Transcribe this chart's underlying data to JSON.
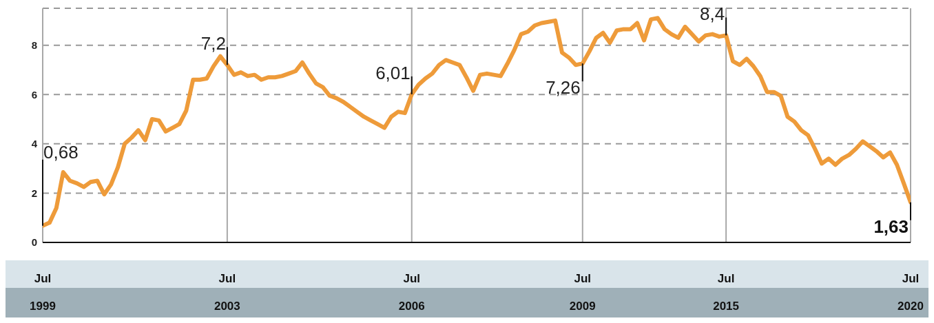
{
  "chart_data": {
    "type": "line",
    "categories": [
      "Jul 1999",
      null,
      null,
      null,
      null,
      null,
      null,
      null,
      null,
      null,
      null,
      null,
      null,
      null,
      null,
      null,
      null,
      null,
      null,
      null,
      null,
      null,
      null,
      null,
      null,
      null,
      null,
      "Jul 2003",
      null,
      null,
      null,
      null,
      null,
      null,
      null,
      null,
      null,
      null,
      null,
      null,
      null,
      null,
      null,
      null,
      null,
      null,
      null,
      null,
      null,
      null,
      null,
      null,
      null,
      null,
      "Jul 2006",
      null,
      null,
      null,
      null,
      null,
      null,
      null,
      null,
      null,
      null,
      null,
      null,
      null,
      null,
      null,
      null,
      null,
      null,
      null,
      null,
      null,
      null,
      null,
      null,
      "Jul 2009",
      null,
      null,
      null,
      null,
      null,
      null,
      null,
      null,
      null,
      null,
      null,
      null,
      null,
      null,
      null,
      null,
      null,
      null,
      null,
      null,
      "Jul 2015",
      null,
      null,
      null,
      null,
      null,
      null,
      null,
      null,
      null,
      null,
      null,
      null,
      null,
      null,
      null,
      null,
      null,
      null,
      null,
      null,
      null,
      null,
      null,
      null,
      null,
      null,
      "Jul 2020"
    ],
    "series": [
      {
        "color": "#ee9b3a",
        "values": [
          0.68,
          0.8,
          1.4,
          2.85,
          2.5,
          2.4,
          2.25,
          2.45,
          2.5,
          1.95,
          2.35,
          3.05,
          4.0,
          4.25,
          4.55,
          4.15,
          5.0,
          4.95,
          4.5,
          4.65,
          4.8,
          5.35,
          6.6,
          6.6,
          6.65,
          7.15,
          7.55,
          7.2,
          6.8,
          6.9,
          6.75,
          6.8,
          6.6,
          6.7,
          6.7,
          6.75,
          6.85,
          6.95,
          7.3,
          6.85,
          6.45,
          6.3,
          5.95,
          5.85,
          5.7,
          5.5,
          5.3,
          5.1,
          4.95,
          4.8,
          4.65,
          5.1,
          5.3,
          5.25,
          6.01,
          6.4,
          6.65,
          6.85,
          7.2,
          7.4,
          7.3,
          7.2,
          6.7,
          6.15,
          6.8,
          6.85,
          6.8,
          6.75,
          7.25,
          7.8,
          8.45,
          8.55,
          8.8,
          8.9,
          8.95,
          9.0,
          7.7,
          7.5,
          7.2,
          7.26,
          7.75,
          8.3,
          8.5,
          8.1,
          8.6,
          8.65,
          8.65,
          8.9,
          8.2,
          9.05,
          9.1,
          8.65,
          8.45,
          8.3,
          8.75,
          8.45,
          8.15,
          8.4,
          8.45,
          8.35,
          8.4,
          7.35,
          7.2,
          7.45,
          7.15,
          6.75,
          6.1,
          6.1,
          5.95,
          5.1,
          4.9,
          4.55,
          4.35,
          3.8,
          3.2,
          3.4,
          3.15,
          3.4,
          3.55,
          3.8,
          4.1,
          3.9,
          3.7,
          3.45,
          3.65,
          3.15,
          2.4,
          1.63
        ],
        "value_labels": [
          "0,68",
          null,
          null,
          null,
          null,
          null,
          null,
          null,
          null,
          null,
          null,
          null,
          null,
          null,
          null,
          null,
          null,
          null,
          null,
          null,
          null,
          null,
          null,
          null,
          null,
          null,
          null,
          "7,2",
          null,
          null,
          null,
          null,
          null,
          null,
          null,
          null,
          null,
          null,
          null,
          null,
          null,
          null,
          null,
          null,
          null,
          null,
          null,
          null,
          null,
          null,
          null,
          null,
          null,
          null,
          "6,01",
          null,
          null,
          null,
          null,
          null,
          null,
          null,
          null,
          null,
          null,
          null,
          null,
          null,
          null,
          null,
          null,
          null,
          null,
          null,
          null,
          null,
          null,
          null,
          null,
          "7,26",
          null,
          null,
          null,
          null,
          null,
          null,
          null,
          null,
          null,
          null,
          null,
          null,
          null,
          null,
          null,
          null,
          null,
          null,
          null,
          null,
          "8,4",
          null,
          null,
          null,
          null,
          null,
          null,
          null,
          null,
          null,
          null,
          null,
          null,
          null,
          null,
          null,
          null,
          null,
          null,
          null,
          null,
          null,
          null,
          null,
          null,
          null,
          null,
          "1,63"
        ]
      }
    ],
    "ylim": [
      0,
      9.5
    ],
    "yticks": [
      0,
      2,
      4,
      6,
      8
    ],
    "grid": true,
    "line_style": "solid",
    "marker": "none"
  }
}
